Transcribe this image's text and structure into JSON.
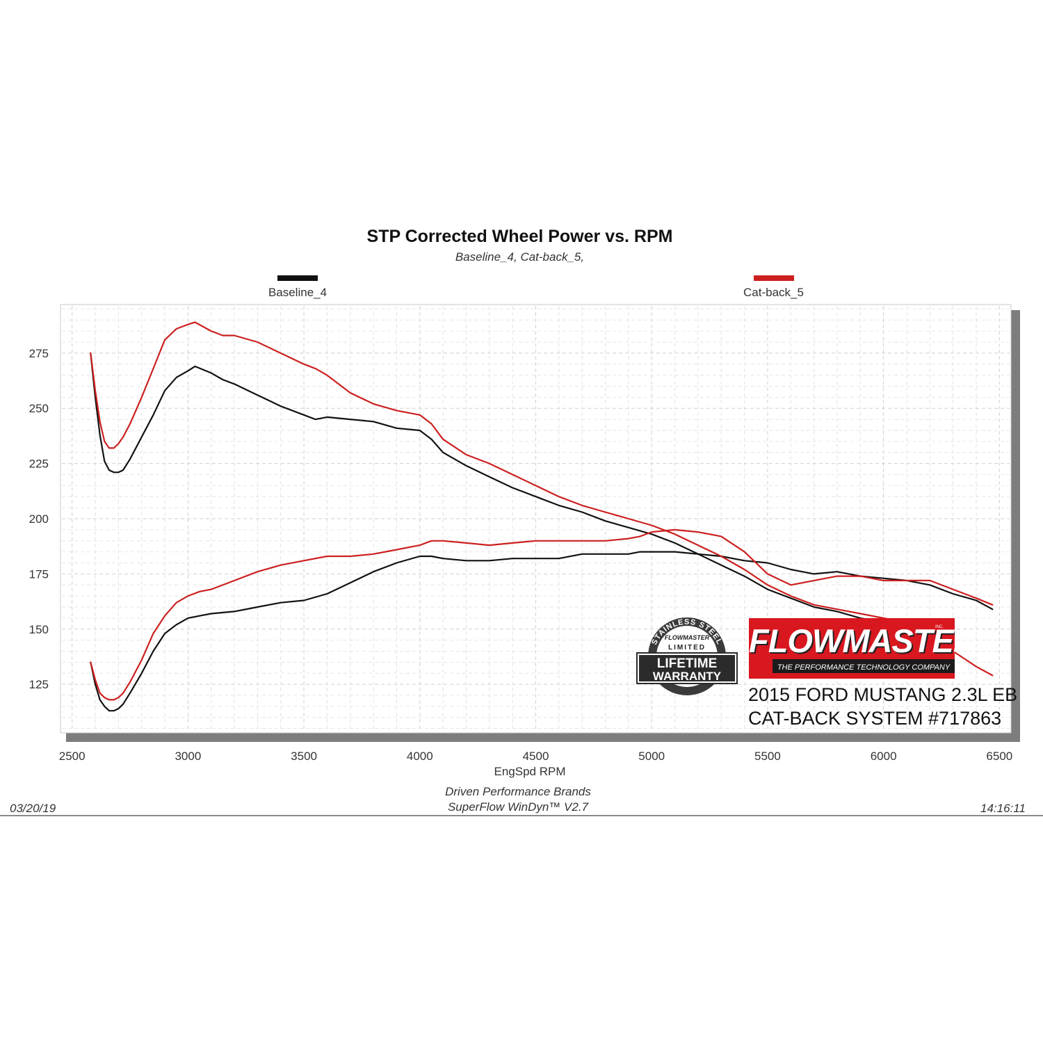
{
  "header": {
    "title": "STP Corrected Wheel Power vs. RPM",
    "subtitle": "Baseline_4, Cat-back_5,"
  },
  "legend": [
    {
      "name": "Baseline_4",
      "color": "#111111"
    },
    {
      "name": "Cat-back_5",
      "color": "#cc1f1f"
    }
  ],
  "footer": {
    "date": "03/20/19",
    "line1": "Driven Performance Brands",
    "line2": "SuperFlow WinDyn™  V2.7",
    "time": "14:16:11"
  },
  "branding": {
    "logo_text": "FLOWMASTER",
    "logo_tagline": "THE PERFORMANCE TECHNOLOGY COMPANY",
    "logo_inc": "INC.",
    "badge_top": "STAINLESS STEEL",
    "badge_brand": "FLOWMASTER",
    "badge_limited": "LIMITED",
    "badge_line1": "LIFETIME",
    "badge_line2": "WARRANTY",
    "car_line1": "2015 FORD MUSTANG 2.3L EB",
    "car_line2": "CAT-BACK SYSTEM #717863"
  },
  "colors": {
    "baseline": "#111111",
    "catback": "#cc1f1f",
    "brand_red": "#d8171f"
  },
  "chart_data": {
    "type": "line",
    "title": "STP Corrected Wheel Power vs. RPM",
    "xlabel": "EngSpd  RPM",
    "ylabel": "",
    "xlim": [
      2450,
      6550
    ],
    "ylim": [
      103,
      297
    ],
    "xticks": [
      2500,
      3000,
      3500,
      4000,
      4500,
      5000,
      5500,
      6000,
      6500
    ],
    "yticks": [
      125,
      150,
      175,
      200,
      225,
      250,
      275
    ],
    "grid": true,
    "legend_position": "top",
    "series": [
      {
        "name": "Baseline_4",
        "curves": [
          {
            "label": "",
            "x": [
              2580,
              2600,
              2620,
              2640,
              2660,
              2680,
              2700,
              2720,
              2750,
              2800,
              2850,
              2900,
              2950,
              3000,
              3030,
              3100,
              3150,
              3200,
              3300,
              3400,
              3500,
              3550,
              3600,
              3700,
              3800,
              3900,
              4000,
              4050,
              4100,
              4200,
              4300,
              4400,
              4500,
              4600,
              4700,
              4800,
              4900,
              5000,
              5100,
              5200,
              5300,
              5400,
              5500,
              5600,
              5700,
              5800,
              5900,
              6000,
              6100
            ],
            "y": [
              275,
              255,
              238,
              226,
              222,
              221,
              221,
              222,
              227,
              237,
              247,
              258,
              264,
              267,
              269,
              266,
              263,
              261,
              256,
              251,
              247,
              245,
              246,
              245,
              244,
              241,
              240,
              236,
              230,
              224,
              219,
              214,
              210,
              206,
              203,
              199,
              196,
              193,
              189,
              184,
              179,
              174,
              168,
              164,
              160,
              158,
              155,
              153,
              151
            ]
          },
          {
            "label": "",
            "x": [
              2580,
              2600,
              2620,
              2640,
              2660,
              2680,
              2700,
              2720,
              2750,
              2800,
              2850,
              2900,
              2950,
              3000,
              3050,
              3100,
              3200,
              3300,
              3400,
              3500,
              3600,
              3700,
              3800,
              3900,
              4000,
              4050,
              4100,
              4200,
              4300,
              4400,
              4500,
              4600,
              4700,
              4800,
              4900,
              4950,
              5000,
              5100,
              5200,
              5300,
              5400,
              5500,
              5600,
              5700,
              5800,
              5900,
              6000,
              6100,
              6200,
              6300,
              6400,
              6470
            ],
            "y": [
              135,
              125,
              118,
              115,
              113,
              113,
              114,
              116,
              121,
              130,
              140,
              148,
              152,
              155,
              156,
              157,
              158,
              160,
              162,
              163,
              166,
              171,
              176,
              180,
              183,
              183,
              182,
              181,
              181,
              182,
              182,
              182,
              184,
              184,
              184,
              185,
              185,
              185,
              184,
              183,
              181,
              180,
              177,
              175,
              176,
              174,
              173,
              172,
              170,
              166,
              163,
              159
            ]
          }
        ]
      },
      {
        "name": "Cat-back_5",
        "curves": [
          {
            "label": "",
            "x": [
              2580,
              2600,
              2620,
              2640,
              2660,
              2680,
              2700,
              2720,
              2750,
              2800,
              2850,
              2900,
              2950,
              3000,
              3030,
              3100,
              3150,
              3200,
              3300,
              3400,
              3500,
              3550,
              3600,
              3700,
              3800,
              3900,
              4000,
              4050,
              4100,
              4200,
              4300,
              4400,
              4500,
              4600,
              4700,
              4800,
              4900,
              5000,
              5100,
              5200,
              5300,
              5400,
              5500,
              5600,
              5700,
              5800,
              5900,
              6000,
              6100,
              6200,
              6300,
              6400,
              6470
            ],
            "y": [
              275,
              258,
              244,
              235,
              232,
              232,
              234,
              237,
              243,
              255,
              268,
              281,
              286,
              288,
              289,
              285,
              283,
              283,
              280,
              275,
              270,
              268,
              265,
              257,
              252,
              249,
              247,
              243,
              236,
              229,
              225,
              220,
              215,
              210,
              206,
              203,
              200,
              197,
              193,
              188,
              183,
              177,
              170,
              165,
              161,
              159,
              157,
              155,
              153,
              148,
              140,
              133,
              129
            ]
          },
          {
            "label": "",
            "x": [
              2580,
              2600,
              2620,
              2640,
              2660,
              2680,
              2700,
              2720,
              2750,
              2800,
              2850,
              2900,
              2950,
              3000,
              3050,
              3100,
              3200,
              3300,
              3400,
              3500,
              3600,
              3700,
              3800,
              3900,
              4000,
              4050,
              4100,
              4200,
              4300,
              4400,
              4500,
              4600,
              4700,
              4800,
              4900,
              4950,
              5000,
              5100,
              5200,
              5300,
              5400,
              5500,
              5600,
              5700,
              5800,
              5900,
              6000,
              6100,
              6200,
              6300,
              6400,
              6470
            ],
            "y": [
              135,
              127,
              121,
              119,
              118,
              118,
              119,
              121,
              126,
              136,
              148,
              156,
              162,
              165,
              167,
              168,
              172,
              176,
              179,
              181,
              183,
              183,
              184,
              186,
              188,
              190,
              190,
              189,
              188,
              189,
              190,
              190,
              190,
              190,
              191,
              192,
              194,
              195,
              194,
              192,
              185,
              175,
              170,
              172,
              174,
              174,
              172,
              172,
              172,
              168,
              164,
              161
            ]
          }
        ]
      }
    ]
  }
}
